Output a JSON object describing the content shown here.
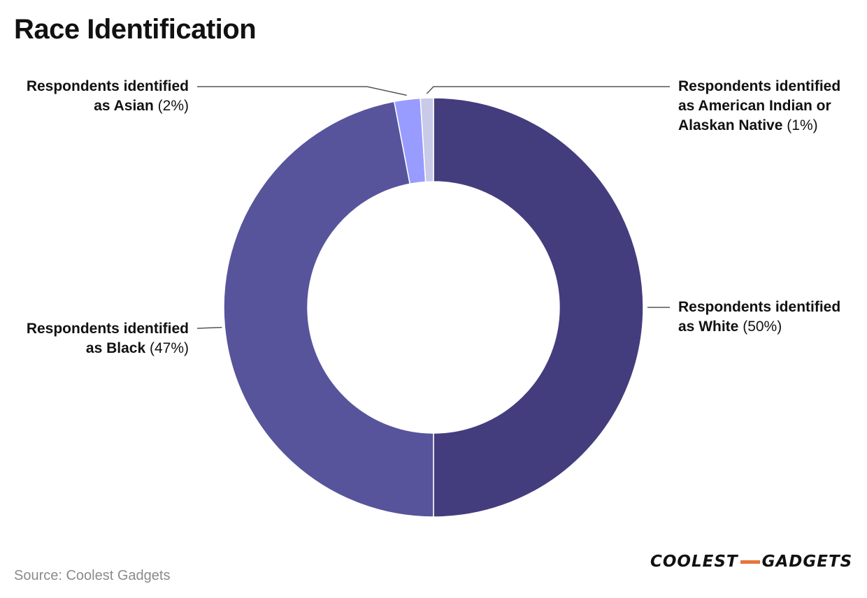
{
  "chart_data": {
    "type": "pie",
    "title": "Race Identification",
    "donut": true,
    "slices": [
      {
        "name": "Respondents identified as White",
        "value": 50,
        "pct_label": "(50%)",
        "color": "#433d7e"
      },
      {
        "name": "Respondents identified as Black",
        "value": 47,
        "pct_label": "(47%)",
        "color": "#57549c"
      },
      {
        "name": "Respondents identified as Asian",
        "value": 2,
        "pct_label": "(2%)",
        "color": "#989cff"
      },
      {
        "name": "Respondents identified as American Indian or Alaskan Native",
        "value": 1,
        "pct_label": "(1%)",
        "color": "#c9cae8"
      }
    ]
  },
  "source": "Source: Coolest Gadgets",
  "brand": {
    "part1": "COOLEST",
    "part2": "GADGETS",
    "accent": "#e8743b"
  }
}
